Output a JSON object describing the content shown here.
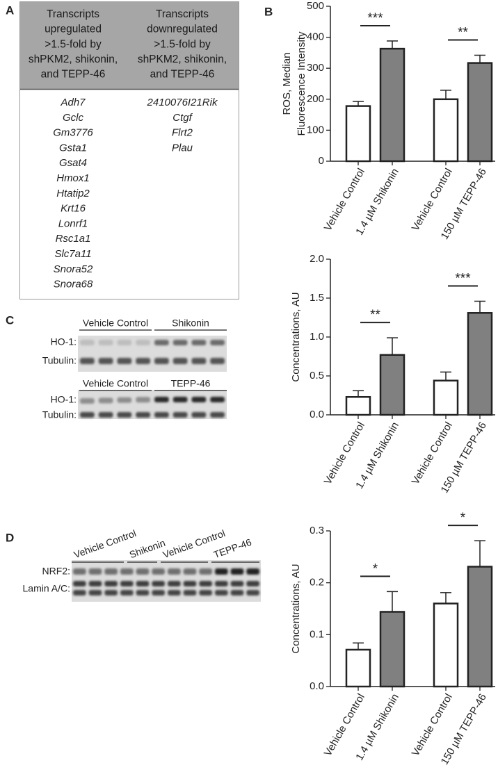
{
  "panels": [
    "A",
    "B",
    "C",
    "D"
  ],
  "table": {
    "columns": [
      {
        "header": [
          "Transcripts",
          "upregulated",
          ">1.5-fold by",
          "shPKM2, shikonin,",
          "and TEPP-46"
        ],
        "items": [
          "Adh7",
          "Gclc",
          "Gm3776",
          "Gsta1",
          "Gsat4",
          "Hmox1",
          "Htatip2",
          "Krt16",
          "Lonrf1",
          "Rsc1a1",
          "Slc7a11",
          "Snora52",
          "Snora68"
        ]
      },
      {
        "header": [
          "Transcripts",
          "downregulated",
          ">1.5-fold by",
          "shPKM2, shikonin,",
          "and TEPP-46"
        ],
        "items": [
          "2410076I21Rik",
          "Ctgf",
          "Flrt2",
          "Plau"
        ]
      }
    ]
  },
  "blots": {
    "c1": {
      "groups": [
        "Vehicle Control",
        "Shikonin"
      ],
      "rows": [
        "HO-1:",
        "Tubulin:"
      ]
    },
    "c2": {
      "groups": [
        "Vehicle Control",
        "TEPP-46"
      ],
      "rows": [
        "HO-1:",
        "Tubulin:"
      ]
    },
    "d": {
      "groups": [
        "Vehicle Control",
        "Shikonin",
        "Vehicle Control",
        "TEPP-46"
      ],
      "rows": [
        "NRF2:",
        "Lamin A/C:"
      ]
    }
  },
  "chart_data": [
    {
      "type": "bar",
      "ylabel": [
        "ROS, Median",
        "Fluorescence Intensity"
      ],
      "categories": [
        "Vehicle Control",
        "1.4 µM Shikonin",
        "Vehicle Control",
        "150 µM TEPP-46"
      ],
      "values": [
        178,
        363,
        200,
        317
      ],
      "errors": [
        15,
        25,
        29,
        25
      ],
      "colors": [
        "#ffffff",
        "#808080",
        "#ffffff",
        "#808080"
      ],
      "ylim": [
        0,
        500
      ],
      "yticks": [
        0,
        100,
        200,
        300,
        400,
        500
      ],
      "annotations": [
        "***",
        "**"
      ]
    },
    {
      "type": "bar",
      "ylabel": [
        "Concentrations, AU"
      ],
      "categories": [
        "Vehicle Control",
        "1.4 µM Shikonin",
        "Vehicle Control",
        "150 µM TEPP-46"
      ],
      "values": [
        0.23,
        0.77,
        0.44,
        1.31
      ],
      "errors": [
        0.08,
        0.22,
        0.11,
        0.15
      ],
      "colors": [
        "#ffffff",
        "#808080",
        "#ffffff",
        "#808080"
      ],
      "ylim": [
        0,
        2
      ],
      "yticks": [
        {
          "value": 0,
          "label": "0.0"
        },
        0.5,
        {
          "value": 1,
          "label": "1.0"
        },
        1.5,
        {
          "value": 2,
          "label": "2.0"
        }
      ],
      "annotations": [
        "**",
        "***"
      ]
    },
    {
      "type": "bar",
      "ylabel": [
        "Concentrations, AU"
      ],
      "categories": [
        "Vehicle Control",
        "1.4 µM Shikonin",
        "Vehicle Control",
        "150 µM TEPP-46"
      ],
      "values": [
        0.071,
        0.144,
        0.16,
        0.231
      ],
      "errors": [
        0.013,
        0.039,
        0.021,
        0.05
      ],
      "colors": [
        "#ffffff",
        "#808080",
        "#ffffff",
        "#808080"
      ],
      "ylim": [
        0,
        0.3
      ],
      "yticks": [
        {
          "value": 0,
          "label": "0.0"
        },
        0.1,
        0.2,
        0.3
      ],
      "annotations": [
        "*",
        "*"
      ]
    }
  ]
}
